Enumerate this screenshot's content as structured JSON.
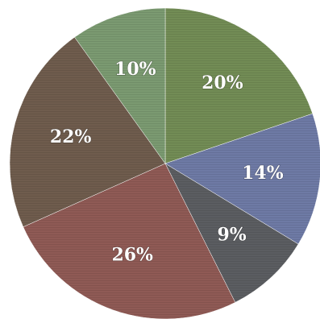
{
  "chart_data": {
    "type": "pie",
    "start_angle_deg": 0,
    "direction": "clockwise",
    "slices": [
      {
        "label": "20%",
        "value": 20,
        "color": "#728c55"
      },
      {
        "label": "14%",
        "value": 14,
        "color": "#6e7aa5"
      },
      {
        "label": "9%",
        "value": 9,
        "color": "#5b5d61"
      },
      {
        "label": "26%",
        "value": 26,
        "color": "#8f5a55"
      },
      {
        "label": "22%",
        "value": 22,
        "color": "#6f5c4d"
      },
      {
        "label": "10%",
        "value": 10,
        "color": "#7b9a71"
      }
    ],
    "title": "",
    "legend": "none"
  }
}
